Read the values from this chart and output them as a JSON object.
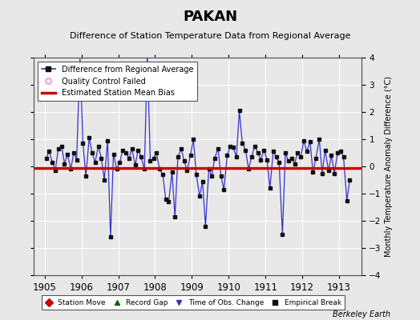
{
  "title": "PAKAN",
  "subtitle": "Difference of Station Temperature Data from Regional Average",
  "ylabel_right": "Monthly Temperature Anomaly Difference (°C)",
  "xlim": [
    1904.7,
    1913.6
  ],
  "ylim": [
    -4,
    4
  ],
  "yticks": [
    -4,
    -3,
    -2,
    -1,
    0,
    1,
    2,
    3,
    4
  ],
  "xticks": [
    1905,
    1906,
    1907,
    1908,
    1909,
    1910,
    1911,
    1912,
    1913
  ],
  "background_color": "#e8e8e8",
  "plot_bg_color": "#e8e8e8",
  "grid_color": "#ffffff",
  "bias_line_color": "#cc0000",
  "bias_value": -0.05,
  "line_color": "#3333cc",
  "marker_color": "#111111",
  "qc_fail_color": "#ff88cc",
  "watermark": "Berkeley Earth",
  "x_data": [
    1905.04,
    1905.12,
    1905.21,
    1905.29,
    1905.37,
    1905.46,
    1905.54,
    1905.62,
    1905.71,
    1905.79,
    1905.87,
    1905.96,
    1906.04,
    1906.12,
    1906.21,
    1906.29,
    1906.37,
    1906.46,
    1906.54,
    1906.62,
    1906.71,
    1906.79,
    1906.87,
    1906.96,
    1907.04,
    1907.12,
    1907.21,
    1907.29,
    1907.37,
    1907.46,
    1907.54,
    1907.62,
    1907.71,
    1907.79,
    1907.87,
    1907.96,
    1908.04,
    1908.12,
    1908.21,
    1908.29,
    1908.37,
    1908.46,
    1908.54,
    1908.62,
    1908.71,
    1908.79,
    1908.87,
    1908.96,
    1909.04,
    1909.12,
    1909.21,
    1909.29,
    1909.37,
    1909.46,
    1909.54,
    1909.62,
    1909.71,
    1909.79,
    1909.87,
    1909.96,
    1910.04,
    1910.12,
    1910.21,
    1910.29,
    1910.37,
    1910.46,
    1910.54,
    1910.62,
    1910.71,
    1910.79,
    1910.87,
    1910.96,
    1911.04,
    1911.12,
    1911.21,
    1911.29,
    1911.37,
    1911.46,
    1911.54,
    1911.62,
    1911.71,
    1911.79,
    1911.87,
    1911.96,
    1912.04,
    1912.12,
    1912.21,
    1912.29,
    1912.37,
    1912.46,
    1912.54,
    1912.62,
    1912.71,
    1912.79,
    1912.87,
    1912.96,
    1913.04,
    1913.12,
    1913.21,
    1913.29
  ],
  "y_data": [
    0.3,
    0.55,
    0.15,
    -0.15,
    0.65,
    0.75,
    0.1,
    0.45,
    -0.1,
    0.5,
    0.25,
    4.05,
    0.85,
    -0.35,
    1.05,
    0.5,
    0.15,
    0.75,
    0.3,
    -0.5,
    0.95,
    -2.6,
    0.45,
    -0.1,
    0.15,
    0.6,
    0.5,
    0.3,
    0.65,
    0.05,
    0.6,
    0.35,
    -0.1,
    4.15,
    0.2,
    0.3,
    0.5,
    -0.1,
    -0.3,
    -1.2,
    -1.3,
    -0.2,
    -1.85,
    0.35,
    0.65,
    0.2,
    -0.15,
    0.4,
    1.0,
    -0.3,
    -1.1,
    -0.55,
    -2.2,
    -0.1,
    -0.35,
    0.3,
    0.65,
    -0.35,
    -0.85,
    0.4,
    0.75,
    0.7,
    0.35,
    2.05,
    0.85,
    0.6,
    -0.1,
    0.35,
    0.75,
    0.5,
    0.25,
    0.6,
    0.25,
    -0.8,
    0.55,
    0.35,
    0.15,
    -2.5,
    0.5,
    0.2,
    0.3,
    0.1,
    0.5,
    0.35,
    0.95,
    0.55,
    0.9,
    -0.2,
    0.3,
    1.0,
    -0.25,
    0.6,
    -0.15,
    0.4,
    -0.25,
    0.5,
    0.55,
    0.35,
    -1.25,
    -0.5
  ],
  "qc_fail_x": [
    1905.96
  ],
  "qc_fail_y": [
    4.05
  ],
  "time_obs_change_x": [],
  "time_obs_change_y": []
}
